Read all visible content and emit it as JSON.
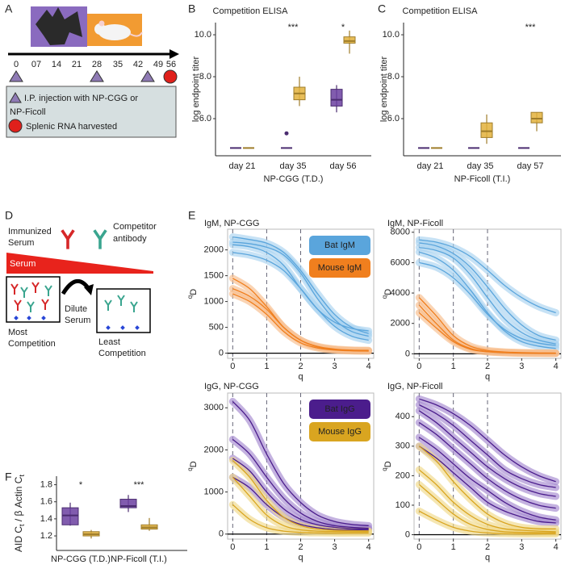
{
  "panel_labels": [
    "A",
    "B",
    "C",
    "D",
    "E",
    "F"
  ],
  "timeline": {
    "ticks": [
      "0",
      "07",
      "14",
      "21",
      "28",
      "35",
      "42",
      "49",
      "56"
    ],
    "legend": {
      "injection": [
        "I.P. injection with NP-CGG or",
        "NP-Ficoll"
      ],
      "harvest": "Splenic RNA harvested"
    }
  },
  "diagram": {
    "serum_label": [
      "Immunized",
      "Serum"
    ],
    "competitor_label": [
      "Competitor",
      "antibody"
    ],
    "gradient_label": "Serum",
    "dilute_label": [
      "Dilute",
      "Serum"
    ],
    "most_label": [
      "Most",
      "Competition"
    ],
    "least_label": [
      "Least",
      "Competition"
    ]
  },
  "chart_data": [
    {
      "type": "box",
      "title": "Competition ELISA",
      "ylabel": "log endpoint titer",
      "xlabel": "NP-CGG (T.D.)",
      "categories": [
        "day 21",
        "day 35",
        "day 56"
      ],
      "series": [
        {
          "color": "#6b3fa0",
          "boxes": [
            {
              "min": 4.6,
              "q1": 4.6,
              "median": 4.6,
              "q3": 4.6,
              "max": 4.6
            },
            {
              "min": 4.6,
              "q1": 4.6,
              "median": 4.6,
              "q3": 4.6,
              "max": 4.6,
              "outliers": [
                5.3
              ]
            },
            {
              "min": 6.3,
              "q1": 6.6,
              "median": 6.9,
              "q3": 7.4,
              "max": 7.6
            }
          ]
        },
        {
          "color": "#e3b23c",
          "boxes": [
            {
              "min": 4.6,
              "q1": 4.6,
              "median": 4.6,
              "q3": 4.6,
              "max": 4.6
            },
            {
              "min": 6.6,
              "q1": 6.9,
              "median": 7.2,
              "q3": 7.5,
              "max": 8.0
            },
            {
              "min": 9.1,
              "q1": 9.6,
              "median": 9.7,
              "q3": 9.9,
              "max": 10.2
            }
          ]
        }
      ],
      "ylim": [
        4.23,
        10.58
      ],
      "yticks": [
        {
          "value": 6,
          "label": "6.0"
        },
        {
          "value": 8,
          "label": "8.0"
        },
        {
          "value": 10,
          "label": "10.0"
        }
      ],
      "annotations": [
        {
          "category": 1,
          "text": "***"
        },
        {
          "category": 2,
          "text": "*"
        }
      ]
    },
    {
      "type": "box",
      "title": "Competition ELISA",
      "ylabel": "log endpoint titer",
      "xlabel": "NP-Ficoll (T.I.)",
      "categories": [
        "day 21",
        "day 35",
        "day 57"
      ],
      "series": [
        {
          "color": "#6b3fa0",
          "boxes": [
            {
              "min": 4.6,
              "q1": 4.6,
              "median": 4.6,
              "q3": 4.6,
              "max": 4.6
            },
            {
              "min": 4.6,
              "q1": 4.6,
              "median": 4.6,
              "q3": 4.6,
              "max": 4.6
            },
            {
              "min": 4.6,
              "q1": 4.6,
              "median": 4.6,
              "q3": 4.6,
              "max": 4.6
            }
          ]
        },
        {
          "color": "#e3b23c",
          "boxes": [
            {
              "min": 4.6,
              "q1": 4.6,
              "median": 4.6,
              "q3": 4.6,
              "max": 4.6
            },
            {
              "min": 4.8,
              "q1": 5.1,
              "median": 5.4,
              "q3": 5.8,
              "max": 6.2
            },
            {
              "min": 5.4,
              "q1": 5.8,
              "median": 6.0,
              "q3": 6.3,
              "max": 6.3
            }
          ]
        }
      ],
      "ylim": [
        4.23,
        10.58
      ],
      "yticks": [
        {
          "value": 6,
          "label": "6.0"
        },
        {
          "value": 8,
          "label": "8.0"
        },
        {
          "value": 10,
          "label": "10.0"
        }
      ],
      "annotations": [
        {
          "category": 2,
          "text": "***"
        }
      ]
    },
    {
      "type": "line",
      "title": "IgM, NP-CGG",
      "xlabel": "q",
      "ylabel_sup": "q",
      "ylabel": "D",
      "x": [
        0,
        0.5,
        1,
        1.5,
        2,
        2.5,
        3,
        3.5,
        4
      ],
      "xlim": [
        -0.15,
        4.15
      ],
      "xticks": [
        0,
        1,
        2,
        3,
        4
      ],
      "ylim": [
        -100,
        2400
      ],
      "yticks": [
        0,
        500,
        1000,
        1500,
        2000
      ],
      "vlines": [
        0,
        1,
        2
      ],
      "legend": "top-right",
      "series": [
        {
          "name": "Bat IgM",
          "color": "#5aa5dc",
          "band_color": "#a9d3f0",
          "curves": [
            [
              2250,
              2200,
              2130,
              1950,
              1600,
              1150,
              750,
              500,
              380
            ],
            [
              2150,
              2120,
              2050,
              1900,
              1550,
              1050,
              650,
              420,
              330
            ],
            [
              2100,
              2060,
              1950,
              1700,
              1250,
              850,
              600,
              480,
              430
            ],
            [
              1950,
              1900,
              1800,
              1600,
              1250,
              850,
              520,
              330,
              250
            ]
          ]
        },
        {
          "name": "Mouse IgM",
          "color": "#f07f1e",
          "band_color": "#f7bd8c",
          "curves": [
            [
              1450,
              1250,
              900,
              500,
              250,
              130,
              80,
              60,
              55
            ],
            [
              1250,
              1100,
              850,
              500,
              250,
              120,
              70,
              50,
              45
            ],
            [
              1150,
              1000,
              750,
              420,
              200,
              100,
              60,
              45,
              40
            ]
          ]
        }
      ]
    },
    {
      "type": "line",
      "title": "IgM, NP-Ficoll",
      "xlabel": "q",
      "ylabel_sup": "q",
      "ylabel": "D",
      "x": [
        0,
        0.5,
        1,
        1.5,
        2,
        2.5,
        3,
        3.5,
        4
      ],
      "xlim": [
        -0.15,
        4.15
      ],
      "xticks": [
        0,
        1,
        2,
        3,
        4
      ],
      "ylim": [
        -300,
        8200
      ],
      "yticks": [
        0,
        2000,
        4000,
        6000,
        8000
      ],
      "vlines": [
        0,
        1,
        2
      ],
      "series": [
        {
          "color": "#5aa5dc",
          "band_color": "#a9d3f0",
          "curves": [
            [
              7500,
              7350,
              7000,
              6400,
              5500,
              4500,
              3700,
              3100,
              2700
            ],
            [
              7300,
              7100,
              6600,
              5700,
              4400,
              3000,
              1900,
              1200,
              900
            ],
            [
              7000,
              6800,
              6300,
              5200,
              3700,
              2300,
              1400,
              900,
              650
            ],
            [
              6700,
              6300,
              5500,
              4200,
              2700,
              1500,
              800,
              500,
              350
            ],
            [
              6000,
              5700,
              5000,
              3900,
              2600,
              1600,
              1000,
              700,
              550
            ]
          ]
        },
        {
          "color": "#f07f1e",
          "band_color": "#f7bd8c",
          "curves": [
            [
              3700,
              2500,
              1200,
              500,
              220,
              120,
              80,
              60,
              50
            ],
            [
              3200,
              2000,
              900,
              350,
              150,
              80,
              50,
              40,
              35
            ],
            [
              2700,
              1700,
              800,
              300,
              130,
              70,
              40,
              30,
              25
            ]
          ]
        }
      ]
    },
    {
      "type": "line",
      "title": "IgG, NP-CGG",
      "xlabel": "q",
      "ylabel_sup": "q",
      "ylabel": "D",
      "x": [
        0,
        0.5,
        1,
        1.5,
        2,
        2.5,
        3,
        3.5,
        4
      ],
      "xlim": [
        -0.15,
        4.15
      ],
      "xticks": [
        0,
        1,
        2,
        3,
        4
      ],
      "ylim": [
        -120,
        3350
      ],
      "yticks": [
        0,
        1000,
        2000,
        3000
      ],
      "vlines": [
        0,
        1,
        2
      ],
      "legend": "top-right",
      "series": [
        {
          "name": "Bat IgG",
          "color": "#4b1d8c",
          "band_color": "#a488cf",
          "curves": [
            [
              3150,
              2700,
              1900,
              1200,
              750,
              450,
              300,
              230,
              200
            ],
            [
              2250,
              1900,
              1350,
              850,
              500,
              300,
              200,
              160,
              140
            ],
            [
              1800,
              1500,
              1000,
              600,
              350,
              220,
              160,
              130,
              120
            ],
            [
              1350,
              1100,
              700,
              400,
              230,
              150,
              110,
              100,
              95
            ]
          ]
        },
        {
          "name": "Mouse IgG",
          "color": "#d9a520",
          "band_color": "#f0d888",
          "curves": [
            [
              1750,
              1350,
              800,
              400,
              200,
              120,
              90,
              80,
              75
            ],
            [
              1350,
              900,
              450,
              200,
              100,
              70,
              60,
              55,
              55
            ],
            [
              700,
              350,
              150,
              70,
              40,
              30,
              25,
              25,
              25
            ]
          ]
        }
      ]
    },
    {
      "type": "line",
      "title": "IgG, NP-Ficoll",
      "xlabel": "q",
      "ylabel_sup": "q",
      "ylabel": "D",
      "x": [
        0,
        0.5,
        1,
        1.5,
        2,
        2.5,
        3,
        3.5,
        4
      ],
      "xlim": [
        -0.15,
        4.15
      ],
      "xticks": [
        0,
        1,
        2,
        3,
        4
      ],
      "ylim": [
        -15,
        480
      ],
      "yticks": [
        0,
        100,
        200,
        300,
        400
      ],
      "vlines": [
        0,
        1,
        2
      ],
      "series": [
        {
          "color": "#4b1d8c",
          "band_color": "#a488cf",
          "curves": [
            [
              460,
              440,
              410,
              370,
              320,
              270,
              230,
              200,
              180
            ],
            [
              440,
              410,
              370,
              320,
              270,
              220,
              190,
              170,
              160
            ],
            [
              420,
              380,
              330,
              280,
              230,
              190,
              160,
              140,
              130
            ],
            [
              380,
              340,
              290,
              240,
              190,
              150,
              120,
              100,
              90
            ],
            [
              330,
              290,
              240,
              190,
              150,
              110,
              80,
              60,
              50
            ],
            [
              300,
              260,
              210,
              160,
              110,
              80,
              60,
              45,
              40
            ]
          ]
        },
        {
          "color": "#d9a520",
          "band_color": "#f0d888",
          "curves": [
            [
              300,
              250,
              180,
              120,
              70,
              40,
              25,
              20,
              20
            ],
            [
              220,
              170,
              110,
              65,
              35,
              20,
              15,
              12,
              10
            ],
            [
              170,
              120,
              70,
              35,
              18,
              10,
              8,
              7,
              7
            ],
            [
              80,
              50,
              25,
              12,
              6,
              4,
              3,
              3,
              3
            ]
          ]
        }
      ]
    },
    {
      "type": "box",
      "ylabel_parts": [
        "AID C",
        "t",
        " / β Actin C",
        "t"
      ],
      "categories": [
        "NP-CGG (T.D.)",
        "NP-Ficoll (T.I.)"
      ],
      "series": [
        {
          "color": "#6b3fa0",
          "boxes": [
            {
              "min": 1.32,
              "q1": 1.33,
              "median": 1.44,
              "q3": 1.53,
              "max": 1.59
            },
            {
              "min": 1.48,
              "q1": 1.53,
              "median": 1.55,
              "q3": 1.63,
              "max": 1.68
            }
          ]
        },
        {
          "color": "#e3b23c",
          "boxes": [
            {
              "min": 1.17,
              "q1": 1.2,
              "median": 1.22,
              "q3": 1.25,
              "max": 1.27
            },
            {
              "min": 1.26,
              "q1": 1.28,
              "median": 1.3,
              "q3": 1.33,
              "max": 1.41
            }
          ]
        }
      ],
      "ylim": [
        1.03,
        1.9
      ],
      "yticks": [
        1.2,
        1.4,
        1.6,
        1.8
      ],
      "annotation_color": "#2b1b6b",
      "annotations": [
        {
          "category": 0,
          "text": "*"
        },
        {
          "category": 1,
          "text": "***"
        }
      ]
    }
  ]
}
